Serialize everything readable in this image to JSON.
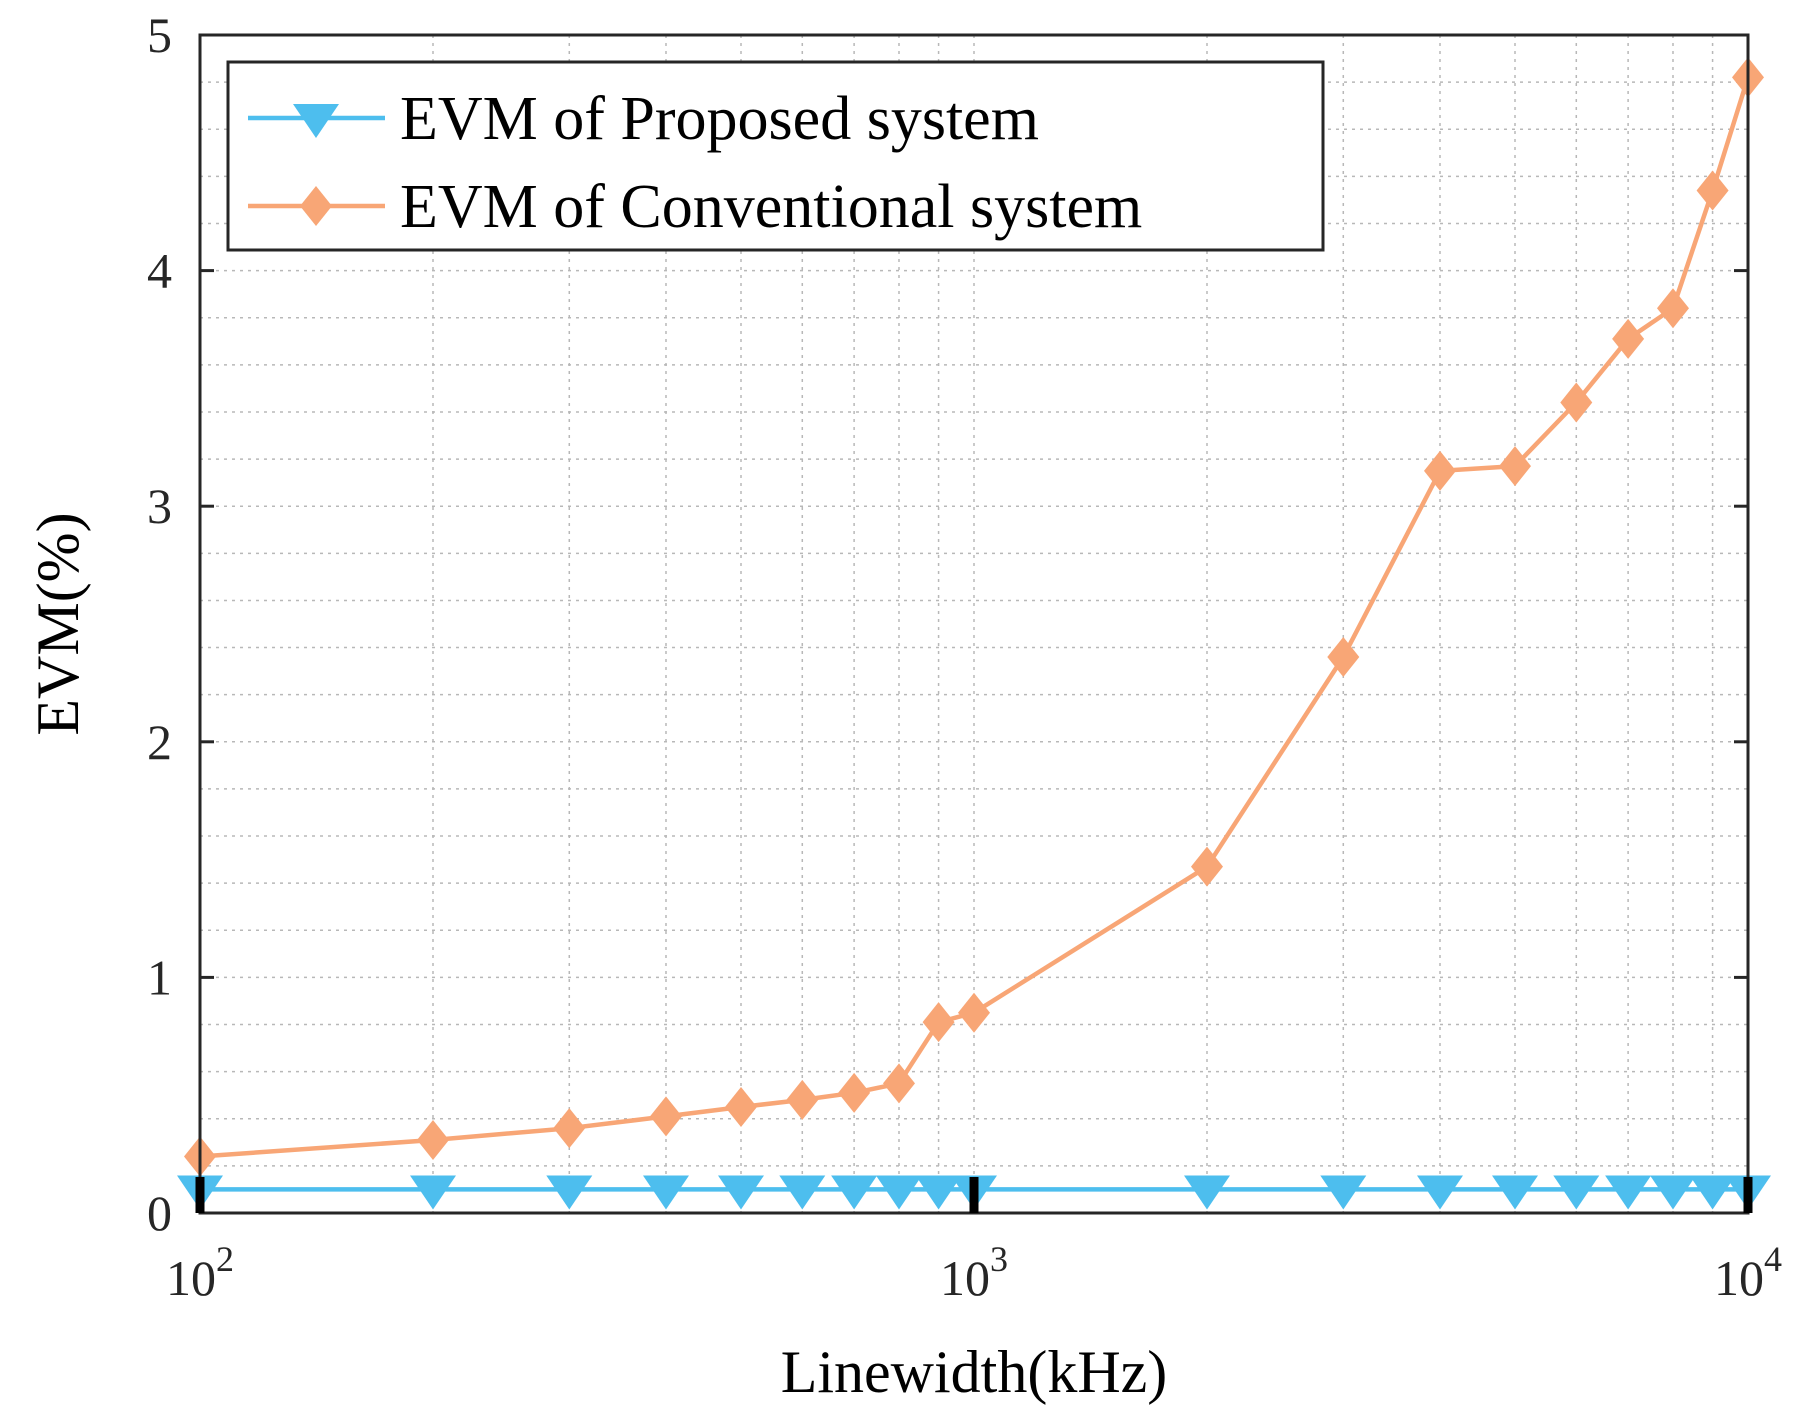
{
  "chart_data": {
    "type": "line",
    "xscale": "log",
    "xlabel": "Linewidth(kHz)",
    "ylabel": "EVM(%)",
    "xlim": [
      100,
      10000
    ],
    "ylim": [
      0,
      5
    ],
    "grid": true,
    "x_ticks": [
      {
        "base": "10",
        "exp": "2"
      },
      {
        "base": "10",
        "exp": "3"
      },
      {
        "base": "10",
        "exp": "4"
      }
    ],
    "y_ticks": [
      "0",
      "1",
      "2",
      "3",
      "4",
      "5"
    ],
    "legend_position": "top-left",
    "x": [
      100,
      200,
      300,
      400,
      500,
      600,
      700,
      800,
      900,
      1000,
      2000,
      3000,
      4000,
      5000,
      6000,
      7000,
      8000,
      9000,
      10000
    ],
    "series": [
      {
        "name": "EVM of Proposed system",
        "color": "#4dbeee",
        "marker": "triangle-down",
        "values": [
          0.1,
          0.1,
          0.1,
          0.1,
          0.1,
          0.1,
          0.1,
          0.1,
          0.1,
          0.1,
          0.1,
          0.1,
          0.1,
          0.1,
          0.1,
          0.1,
          0.1,
          0.1,
          0.1
        ]
      },
      {
        "name": "EVM of Conventional system",
        "color": "#f8a676",
        "marker": "diamond",
        "values": [
          0.24,
          0.31,
          0.36,
          0.41,
          0.45,
          0.48,
          0.51,
          0.55,
          0.81,
          0.85,
          1.47,
          2.36,
          3.15,
          3.17,
          3.44,
          3.71,
          3.84,
          4.34,
          4.82
        ]
      }
    ]
  }
}
